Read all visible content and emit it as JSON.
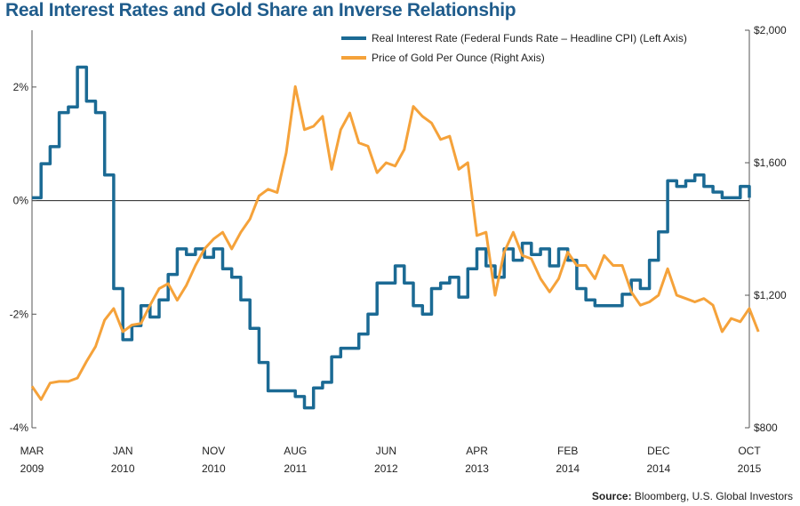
{
  "chart_data": {
    "type": "line",
    "title": "Real Interest Rates and Gold Share an Inverse Relationship",
    "source_label": "Source:",
    "source_text": "Bloomberg, U.S. Global Investors",
    "x_axis": {
      "range": [
        "2009-03",
        "2015-10"
      ],
      "ticks": [
        {
          "date": "2009-03",
          "month": "MAR",
          "year": "2009"
        },
        {
          "date": "2010-01",
          "month": "JAN",
          "year": "2010"
        },
        {
          "date": "2010-11",
          "month": "NOV",
          "year": "2010"
        },
        {
          "date": "2011-08",
          "month": "AUG",
          "year": "2011"
        },
        {
          "date": "2012-06",
          "month": "JUN",
          "year": "2012"
        },
        {
          "date": "2013-04",
          "month": "APR",
          "year": "2013"
        },
        {
          "date": "2014-02",
          "month": "FEB",
          "year": "2014"
        },
        {
          "date": "2014-12",
          "month": "DEC",
          "year": "2014"
        },
        {
          "date": "2015-10",
          "month": "OCT",
          "year": "2015"
        }
      ]
    },
    "left_axis": {
      "ylim": [
        -4,
        3
      ],
      "ticks": [
        {
          "value": 2,
          "label": "2%"
        },
        {
          "value": 0,
          "label": "0%"
        },
        {
          "value": -2,
          "label": "-2%"
        },
        {
          "value": -4,
          "label": "-4%"
        }
      ]
    },
    "right_axis": {
      "ylim": [
        800,
        2000
      ],
      "ticks": [
        {
          "value": 2000,
          "label": "$2,000"
        },
        {
          "value": 1600,
          "label": "$1,600"
        },
        {
          "value": 1200,
          "label": "$1,200"
        },
        {
          "value": 800,
          "label": "$800"
        }
      ]
    },
    "legend": {
      "placement": "top-right"
    },
    "series": [
      {
        "name": "Real Interest Rate (Federal Funds Rate – Headline CPI)  (Left Axis)",
        "axis": "left",
        "color": "#1b6a94",
        "step": true,
        "points": [
          [
            "2009-03",
            0.05
          ],
          [
            "2009-04",
            0.65
          ],
          [
            "2009-05",
            0.95
          ],
          [
            "2009-06",
            1.55
          ],
          [
            "2009-07",
            1.65
          ],
          [
            "2009-08",
            2.35
          ],
          [
            "2009-09",
            1.75
          ],
          [
            "2009-10",
            1.55
          ],
          [
            "2009-11",
            0.45
          ],
          [
            "2009-12",
            -1.55
          ],
          [
            "2010-01",
            -2.45
          ],
          [
            "2010-02",
            -2.2
          ],
          [
            "2010-03",
            -1.85
          ],
          [
            "2010-04",
            -2.05
          ],
          [
            "2010-05",
            -1.75
          ],
          [
            "2010-06",
            -1.3
          ],
          [
            "2010-07",
            -0.85
          ],
          [
            "2010-08",
            -0.95
          ],
          [
            "2010-09",
            -0.85
          ],
          [
            "2010-10",
            -1.0
          ],
          [
            "2010-11",
            -0.85
          ],
          [
            "2010-12",
            -1.2
          ],
          [
            "2011-01",
            -1.35
          ],
          [
            "2011-02",
            -1.75
          ],
          [
            "2011-03",
            -2.25
          ],
          [
            "2011-04",
            -2.85
          ],
          [
            "2011-05",
            -3.35
          ],
          [
            "2011-06",
            -3.35
          ],
          [
            "2011-07",
            -3.35
          ],
          [
            "2011-08",
            -3.45
          ],
          [
            "2011-09",
            -3.65
          ],
          [
            "2011-10",
            -3.3
          ],
          [
            "2011-11",
            -3.2
          ],
          [
            "2011-12",
            -2.75
          ],
          [
            "2012-01",
            -2.6
          ],
          [
            "2012-02",
            -2.6
          ],
          [
            "2012-03",
            -2.35
          ],
          [
            "2012-04",
            -2.0
          ],
          [
            "2012-05",
            -1.45
          ],
          [
            "2012-06",
            -1.45
          ],
          [
            "2012-07",
            -1.15
          ],
          [
            "2012-08",
            -1.45
          ],
          [
            "2012-09",
            -1.85
          ],
          [
            "2012-10",
            -2.0
          ],
          [
            "2012-11",
            -1.55
          ],
          [
            "2012-12",
            -1.45
          ],
          [
            "2013-01",
            -1.35
          ],
          [
            "2013-02",
            -1.7
          ],
          [
            "2013-03",
            -1.2
          ],
          [
            "2013-04",
            -0.85
          ],
          [
            "2013-05",
            -1.15
          ],
          [
            "2013-06",
            -1.35
          ],
          [
            "2013-07",
            -0.85
          ],
          [
            "2013-08",
            -1.05
          ],
          [
            "2013-09",
            -0.75
          ],
          [
            "2013-10",
            -0.95
          ],
          [
            "2013-11",
            -0.85
          ],
          [
            "2013-12",
            -1.15
          ],
          [
            "2014-01",
            -0.85
          ],
          [
            "2014-02",
            -1.05
          ],
          [
            "2014-03",
            -1.55
          ],
          [
            "2014-04",
            -1.75
          ],
          [
            "2014-05",
            -1.85
          ],
          [
            "2014-06",
            -1.85
          ],
          [
            "2014-07",
            -1.85
          ],
          [
            "2014-08",
            -1.65
          ],
          [
            "2014-09",
            -1.4
          ],
          [
            "2014-10",
            -1.55
          ],
          [
            "2014-11",
            -1.05
          ],
          [
            "2014-12",
            -0.55
          ],
          [
            "2015-01",
            0.35
          ],
          [
            "2015-02",
            0.25
          ],
          [
            "2015-03",
            0.35
          ],
          [
            "2015-04",
            0.45
          ],
          [
            "2015-05",
            0.25
          ],
          [
            "2015-06",
            0.15
          ],
          [
            "2015-07",
            0.05
          ],
          [
            "2015-08",
            0.05
          ],
          [
            "2015-09",
            0.25
          ],
          [
            "2015-10",
            0.05
          ]
        ]
      },
      {
        "name": "Price of Gold Per Ounce (Right Axis)",
        "axis": "right",
        "color": "#f5a23a",
        "step": false,
        "points": [
          [
            "2009-03",
            925
          ],
          [
            "2009-04",
            885
          ],
          [
            "2009-05",
            935
          ],
          [
            "2009-06",
            940
          ],
          [
            "2009-07",
            940
          ],
          [
            "2009-08",
            950
          ],
          [
            "2009-09",
            1000
          ],
          [
            "2009-10",
            1045
          ],
          [
            "2009-11",
            1125
          ],
          [
            "2009-12",
            1160
          ],
          [
            "2010-01",
            1090
          ],
          [
            "2010-02",
            1110
          ],
          [
            "2010-03",
            1115
          ],
          [
            "2010-04",
            1170
          ],
          [
            "2010-05",
            1220
          ],
          [
            "2010-06",
            1235
          ],
          [
            "2010-07",
            1185
          ],
          [
            "2010-08",
            1230
          ],
          [
            "2010-09",
            1290
          ],
          [
            "2010-10",
            1340
          ],
          [
            "2010-11",
            1370
          ],
          [
            "2010-12",
            1390
          ],
          [
            "2011-01",
            1340
          ],
          [
            "2011-02",
            1390
          ],
          [
            "2011-03",
            1430
          ],
          [
            "2011-04",
            1500
          ],
          [
            "2011-05",
            1520
          ],
          [
            "2011-06",
            1510
          ],
          [
            "2011-07",
            1630
          ],
          [
            "2011-08",
            1830
          ],
          [
            "2011-09",
            1700
          ],
          [
            "2011-10",
            1710
          ],
          [
            "2011-11",
            1740
          ],
          [
            "2011-12",
            1580
          ],
          [
            "2012-01",
            1700
          ],
          [
            "2012-02",
            1750
          ],
          [
            "2012-03",
            1660
          ],
          [
            "2012-04",
            1650
          ],
          [
            "2012-05",
            1570
          ],
          [
            "2012-06",
            1600
          ],
          [
            "2012-07",
            1590
          ],
          [
            "2012-08",
            1640
          ],
          [
            "2012-09",
            1770
          ],
          [
            "2012-10",
            1740
          ],
          [
            "2012-11",
            1720
          ],
          [
            "2012-12",
            1670
          ],
          [
            "2013-01",
            1680
          ],
          [
            "2013-02",
            1580
          ],
          [
            "2013-03",
            1600
          ],
          [
            "2013-04",
            1380
          ],
          [
            "2013-05",
            1390
          ],
          [
            "2013-06",
            1200
          ],
          [
            "2013-07",
            1330
          ],
          [
            "2013-08",
            1390
          ],
          [
            "2013-09",
            1320
          ],
          [
            "2013-10",
            1310
          ],
          [
            "2013-11",
            1250
          ],
          [
            "2013-12",
            1210
          ],
          [
            "2014-01",
            1250
          ],
          [
            "2014-02",
            1330
          ],
          [
            "2014-03",
            1290
          ],
          [
            "2014-04",
            1290
          ],
          [
            "2014-05",
            1250
          ],
          [
            "2014-06",
            1320
          ],
          [
            "2014-07",
            1290
          ],
          [
            "2014-08",
            1290
          ],
          [
            "2014-09",
            1210
          ],
          [
            "2014-10",
            1170
          ],
          [
            "2014-11",
            1180
          ],
          [
            "2014-12",
            1200
          ],
          [
            "2015-01",
            1280
          ],
          [
            "2015-02",
            1200
          ],
          [
            "2015-03",
            1190
          ],
          [
            "2015-04",
            1180
          ],
          [
            "2015-05",
            1190
          ],
          [
            "2015-06",
            1170
          ],
          [
            "2015-07",
            1090
          ],
          [
            "2015-08",
            1130
          ],
          [
            "2015-09",
            1120
          ],
          [
            "2015-10",
            1160
          ],
          [
            "2015-11",
            1090
          ]
        ]
      }
    ]
  }
}
